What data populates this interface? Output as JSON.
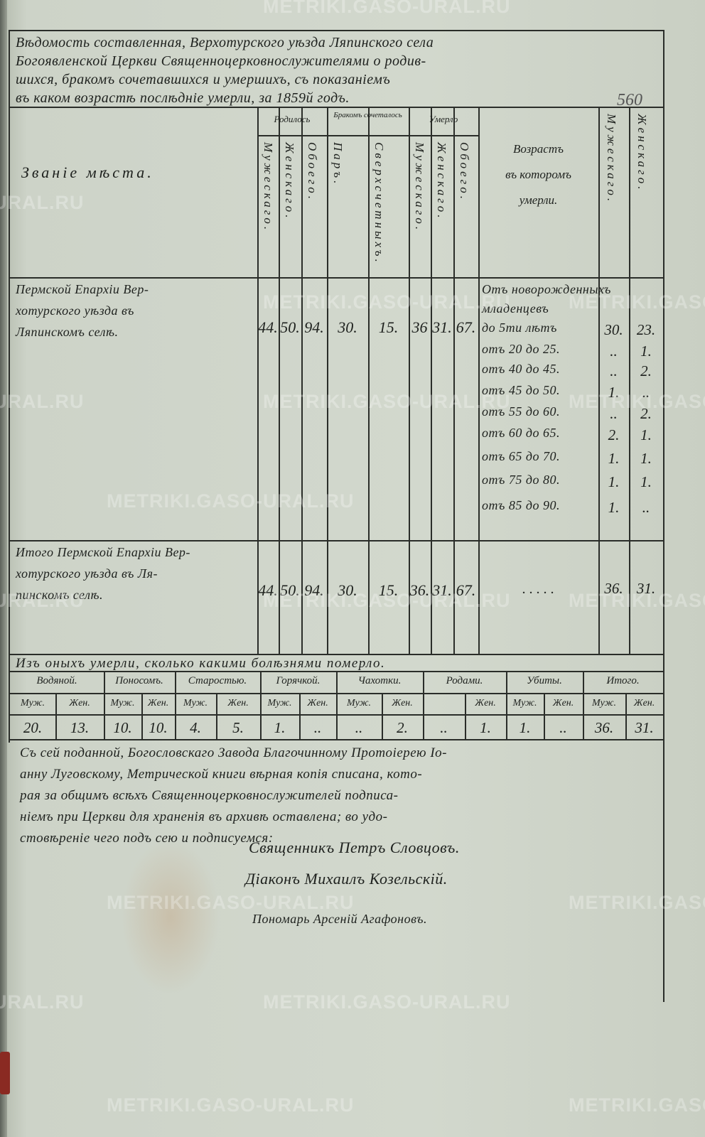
{
  "document": {
    "heading": [
      "Вѣдомость составленная, Верхотурского уѣзда Ляпинского села",
      "Богоявленской Церкви Священноцерковнослужителями о родив-",
      "шихся, бракомъ сочетавшихся и умершихъ, съ показаніемъ",
      "въ каком возрастѣ послѣдніе умерли, за 1859й годъ."
    ],
    "page_number": "560",
    "main_table": {
      "col_title": "Званіе мѣста.",
      "groups": {
        "born": "Родилось",
        "married": "Бракомъ сочеталось",
        "died": "Умерло"
      },
      "sub": {
        "born": [
          "Мужескаго.",
          "Женскаго.",
          "Обоего."
        ],
        "married": [
          "Паръ.",
          "Сверхсчетныхъ."
        ],
        "died": [
          "Мужескаго.",
          "Женскаго.",
          "Обоего."
        ]
      },
      "age_header": [
        "Возрастъ",
        "въ которомъ",
        "умерли."
      ],
      "age_sex": [
        "Мужескаго.",
        "Женскаго."
      ],
      "place": [
        "Пермской Епархіи Вер-",
        "хотурского уѣзда въ",
        "Ляпинскомъ селѣ."
      ],
      "values": [
        "44.",
        "50.",
        "94.",
        "30.",
        "15.",
        "36",
        "31.",
        "67."
      ],
      "age_rows": [
        {
          "label": "Отъ новорожденныхъ",
          "m": "",
          "f": ""
        },
        {
          "label": "младенцевъ",
          "m": "",
          "f": ""
        },
        {
          "label": "до 5ти лѣтъ",
          "m": "30.",
          "f": "23."
        },
        {
          "label": "отъ 20 до 25.",
          "m": "..",
          "f": "1."
        },
        {
          "label": "отъ 40 до 45.",
          "m": "..",
          "f": "2."
        },
        {
          "label": "отъ 45 до 50.",
          "m": "1.",
          "f": ".."
        },
        {
          "label": "отъ 55 до 60.",
          "m": "..",
          "f": "2."
        },
        {
          "label": "отъ 60 до 65.",
          "m": "2.",
          "f": "1."
        },
        {
          "label": "отъ 65 до 70.",
          "m": "1.",
          "f": "1."
        },
        {
          "label": "отъ 75 до 80.",
          "m": "1.",
          "f": "1."
        },
        {
          "label": "отъ 85 до 90.",
          "m": "1.",
          "f": ".."
        }
      ],
      "total_place": [
        "Итого Пермской Епархіи Вер-",
        "хотурского уѣзда въ Ля-",
        "пинскомъ селѣ."
      ],
      "total_values": [
        "44.",
        "50.",
        "94.",
        "30.",
        "15.",
        "36.",
        "31.",
        "67."
      ],
      "total_age_dots": ". . . . .",
      "total_m": "36.",
      "total_f": "31."
    },
    "causes_table": {
      "title": "Изъ оныхъ умерли, сколько какими болѣзнями померло.",
      "groups": [
        "Водяной.",
        "Поносомъ.",
        "Старостью.",
        "Горячкой.",
        "Чахотки.",
        "Родами.",
        "Убиты.",
        "Итого."
      ],
      "sub": [
        "Муж.",
        "Жен.",
        "Муж.",
        "Жен.",
        "Муж.",
        "Жен.",
        "Муж.",
        "Жен.",
        "Муж.",
        "Жен.",
        "",
        "Жен.",
        "Муж.",
        "Жен.",
        "Муж.",
        "Жен."
      ],
      "values": [
        "20.",
        "13.",
        "10.",
        "10.",
        "4.",
        "5.",
        "1.",
        "..",
        "..",
        "2.",
        "..",
        "1.",
        "1.",
        "..",
        "36.",
        "31."
      ]
    },
    "closing_text": [
      "Съ сей поданной, Богословскаго Завода Благочинному Протоіерею Іо-",
      "анну Луговскому, Метрической книги вѣрная копія списана, кото-",
      "рая за общимъ всѣхъ Священноцерковнослужителей подписа-",
      "ніемъ при Церкви для храненія въ архивѣ оставлена; во удо-",
      "стовѣреніе чего подъ сею и подписуемся:"
    ],
    "signatures": [
      "Священникъ Петръ Словцовъ.",
      "Діаконъ Михаилъ Козельскій.",
      "Пономарь Арсеній Агафоновъ."
    ],
    "watermark": "METRIKI.GASO-URAL.RU",
    "watermark_partial": "URAL.RU",
    "colors": {
      "paper": "#d2d8cd",
      "ink": "#1e211e",
      "seal": "#8a2a22"
    }
  }
}
